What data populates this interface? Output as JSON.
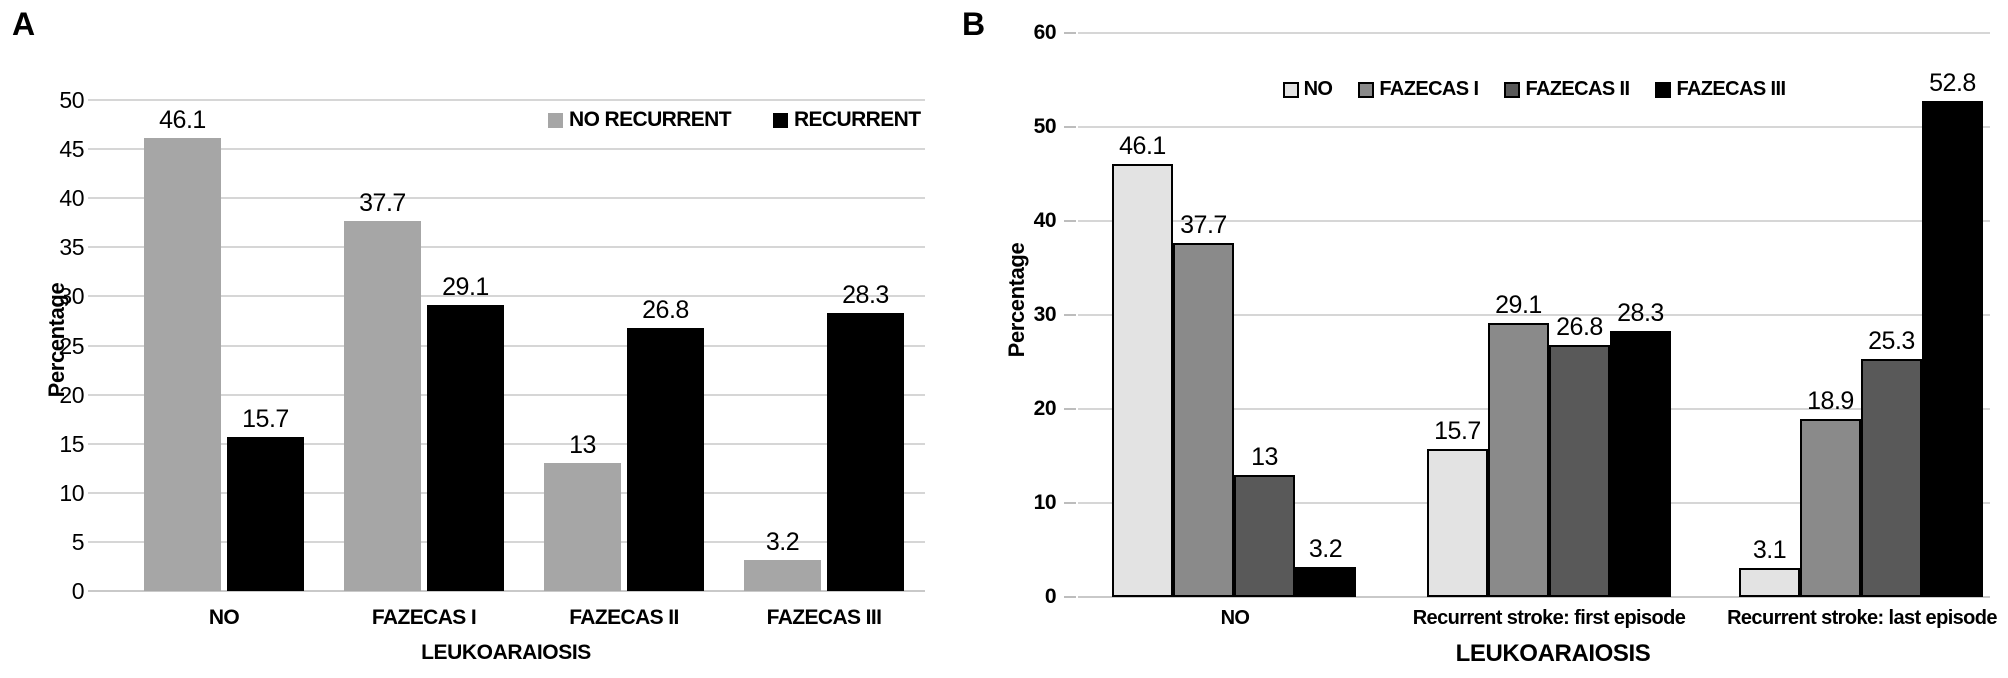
{
  "figure": {
    "background": "#ffffff",
    "text_color": "#000000",
    "gridline_color": "#d6d6d6"
  },
  "chart_data": [
    {
      "panel_label": "A",
      "type": "bar",
      "title": "",
      "xlabel": "LEUKOARAIOSIS",
      "ylabel": "Percentage",
      "ylim": [
        0,
        50
      ],
      "ytick_step": 5,
      "grid": true,
      "legend_position": "top-right-inside",
      "categories": [
        "NO",
        "FAZECAS I",
        "FAZECAS II",
        "FAZECAS III"
      ],
      "series": [
        {
          "name": "NO RECURRENT",
          "color": "#a6a6a6",
          "outline": "none",
          "values": [
            46.1,
            37.7,
            13,
            3.2
          ]
        },
        {
          "name": "RECURRENT",
          "color": "#000000",
          "outline": "none",
          "values": [
            15.7,
            29.1,
            26.8,
            28.3
          ]
        }
      ]
    },
    {
      "panel_label": "B",
      "type": "bar",
      "title": "",
      "xlabel": "LEUKOARAIOSIS",
      "ylabel": "Percentage",
      "ylim": [
        0,
        60
      ],
      "ytick_step": 10,
      "grid": true,
      "legend_position": "top-center-inside",
      "categories": [
        "NO",
        "Recurrent stroke: first episode",
        "Recurrent stroke: last episode"
      ],
      "series": [
        {
          "name": "NO",
          "color": "#e3e3e3",
          "outline": "#000000",
          "values": [
            46.1,
            15.7,
            3.1
          ]
        },
        {
          "name": "FAZECAS I",
          "color": "#8a8a8a",
          "outline": "#000000",
          "values": [
            37.7,
            29.1,
            18.9
          ]
        },
        {
          "name": "FAZECAS II",
          "color": "#595959",
          "outline": "#000000",
          "values": [
            13,
            26.8,
            25.3
          ]
        },
        {
          "name": "FAZECAS III",
          "color": "#000000",
          "outline": "#000000",
          "values": [
            3.2,
            28.3,
            52.8
          ]
        }
      ]
    }
  ]
}
